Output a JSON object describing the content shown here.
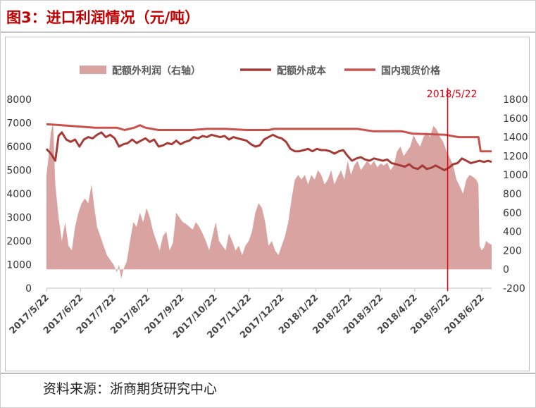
{
  "title": "图3：进口利润情况（元/吨）",
  "source": "资料来源：浙商期货研究中心",
  "colors": {
    "title": "#c00000",
    "profit_area": "#d9a3a1",
    "cost_line": "#a63b36",
    "price_line": "#c9514c",
    "marker_line": "#e60012"
  },
  "chart_data": {
    "type": "area",
    "legend_position": "top",
    "grid": false,
    "x_tick_labels": [
      "2017/5/22",
      "2017/6/22",
      "2017/7/22",
      "2017/8/22",
      "2017/9/22",
      "2017/10/22",
      "2017/11/22",
      "2017/12/22",
      "2018/1/22",
      "2018/2/22",
      "2018/3/22",
      "2018/4/22",
      "2018/5/22",
      "2018/6/22"
    ],
    "x_range": [
      "2017/5/22",
      "2018/7/1"
    ],
    "y_left": {
      "range": [
        0,
        8000
      ],
      "ticks": [
        0,
        1000,
        2000,
        3000,
        4000,
        5000,
        6000,
        7000,
        8000
      ]
    },
    "y_right": {
      "range": [
        -200,
        1800
      ],
      "ticks": [
        -200,
        0,
        200,
        400,
        600,
        800,
        1000,
        1200,
        1400,
        1600,
        1800
      ]
    },
    "annotation": {
      "label": "2018/5/22",
      "x": "2018/5/22"
    },
    "series": [
      {
        "name": "配额外利润（右轴）",
        "type": "area",
        "axis": "right",
        "points": [
          [
            "2017/5/22",
            1000
          ],
          [
            "2017/5/24",
            1200
          ],
          [
            "2017/5/26",
            1450
          ],
          [
            "2017/5/28",
            1550
          ],
          [
            "2017/5/30",
            900
          ],
          [
            "2017/6/2",
            550
          ],
          [
            "2017/6/5",
            300
          ],
          [
            "2017/6/8",
            500
          ],
          [
            "2017/6/11",
            250
          ],
          [
            "2017/6/14",
            200
          ],
          [
            "2017/6/17",
            450
          ],
          [
            "2017/6/20",
            600
          ],
          [
            "2017/6/23",
            700
          ],
          [
            "2017/6/26",
            750
          ],
          [
            "2017/6/29",
            700
          ],
          [
            "2017/7/2",
            900
          ],
          [
            "2017/7/4",
            700
          ],
          [
            "2017/7/7",
            450
          ],
          [
            "2017/7/10",
            350
          ],
          [
            "2017/7/13",
            250
          ],
          [
            "2017/7/16",
            150
          ],
          [
            "2017/7/19",
            100
          ],
          [
            "2017/7/22",
            50
          ],
          [
            "2017/7/25",
            -30
          ],
          [
            "2017/7/27",
            50
          ],
          [
            "2017/7/29",
            -100
          ],
          [
            "2017/7/31",
            0
          ],
          [
            "2017/8/3",
            80
          ],
          [
            "2017/8/6",
            300
          ],
          [
            "2017/8/9",
            500
          ],
          [
            "2017/8/12",
            450
          ],
          [
            "2017/8/15",
            600
          ],
          [
            "2017/8/18",
            500
          ],
          [
            "2017/8/21",
            650
          ],
          [
            "2017/8/24",
            550
          ],
          [
            "2017/8/27",
            400
          ],
          [
            "2017/8/30",
            300
          ],
          [
            "2017/9/2",
            200
          ],
          [
            "2017/9/5",
            350
          ],
          [
            "2017/9/8",
            400
          ],
          [
            "2017/9/11",
            200
          ],
          [
            "2017/9/14",
            280
          ],
          [
            "2017/9/17",
            600
          ],
          [
            "2017/9/20",
            550
          ],
          [
            "2017/9/23",
            500
          ],
          [
            "2017/9/26",
            480
          ],
          [
            "2017/9/29",
            450
          ],
          [
            "2017/10/2",
            420
          ],
          [
            "2017/10/5",
            500
          ],
          [
            "2017/10/8",
            450
          ],
          [
            "2017/10/11",
            380
          ],
          [
            "2017/10/14",
            300
          ],
          [
            "2017/10/17",
            200
          ],
          [
            "2017/10/20",
            350
          ],
          [
            "2017/10/23",
            500
          ],
          [
            "2017/10/26",
            300
          ],
          [
            "2017/10/29",
            250
          ],
          [
            "2017/11/1",
            200
          ],
          [
            "2017/11/4",
            380
          ],
          [
            "2017/11/7",
            300
          ],
          [
            "2017/11/10",
            200
          ],
          [
            "2017/11/13",
            250
          ],
          [
            "2017/11/16",
            150
          ],
          [
            "2017/11/19",
            250
          ],
          [
            "2017/11/22",
            300
          ],
          [
            "2017/11/25",
            400
          ],
          [
            "2017/11/28",
            600
          ],
          [
            "2017/12/1",
            700
          ],
          [
            "2017/12/4",
            650
          ],
          [
            "2017/12/7",
            500
          ],
          [
            "2017/12/10",
            250
          ],
          [
            "2017/12/13",
            300
          ],
          [
            "2017/12/16",
            200
          ],
          [
            "2017/12/19",
            150
          ],
          [
            "2017/12/22",
            250
          ],
          [
            "2017/12/25",
            350
          ],
          [
            "2017/12/28",
            500
          ],
          [
            "2017/12/31",
            750
          ],
          [
            "2018/1/3",
            950
          ],
          [
            "2018/1/6",
            1000
          ],
          [
            "2018/1/9",
            950
          ],
          [
            "2018/1/12",
            1000
          ],
          [
            "2018/1/15",
            900
          ],
          [
            "2018/1/18",
            1000
          ],
          [
            "2018/1/21",
            950
          ],
          [
            "2018/1/24",
            1050
          ],
          [
            "2018/1/27",
            1000
          ],
          [
            "2018/1/30",
            900
          ],
          [
            "2018/2/2",
            950
          ],
          [
            "2018/2/5",
            1050
          ],
          [
            "2018/2/8",
            900
          ],
          [
            "2018/2/11",
            980
          ],
          [
            "2018/2/14",
            1050
          ],
          [
            "2018/2/17",
            950
          ],
          [
            "2018/2/20",
            1150
          ],
          [
            "2018/2/23",
            1000
          ],
          [
            "2018/2/26",
            1100
          ],
          [
            "2018/3/1",
            1150
          ],
          [
            "2018/3/4",
            1050
          ],
          [
            "2018/3/7",
            1100
          ],
          [
            "2018/3/10",
            1150
          ],
          [
            "2018/3/13",
            1100
          ],
          [
            "2018/3/16",
            1150
          ],
          [
            "2018/3/19",
            1080
          ],
          [
            "2018/3/22",
            1120
          ],
          [
            "2018/3/25",
            1100
          ],
          [
            "2018/3/28",
            1130
          ],
          [
            "2018/3/31",
            1050
          ],
          [
            "2018/4/3",
            1100
          ],
          [
            "2018/4/6",
            1250
          ],
          [
            "2018/4/9",
            1300
          ],
          [
            "2018/4/12",
            1200
          ],
          [
            "2018/4/15",
            1250
          ],
          [
            "2018/4/18",
            1300
          ],
          [
            "2018/4/21",
            1420
          ],
          [
            "2018/4/24",
            1350
          ],
          [
            "2018/4/27",
            1300
          ],
          [
            "2018/4/30",
            1400
          ],
          [
            "2018/5/3",
            1450
          ],
          [
            "2018/5/6",
            1400
          ],
          [
            "2018/5/9",
            1520
          ],
          [
            "2018/5/12",
            1480
          ],
          [
            "2018/5/15",
            1400
          ],
          [
            "2018/5/18",
            1350
          ],
          [
            "2018/5/21",
            1250
          ],
          [
            "2018/5/24",
            1180
          ],
          [
            "2018/5/27",
            1100
          ],
          [
            "2018/5/30",
            950
          ],
          [
            "2018/6/2",
            880
          ],
          [
            "2018/6/5",
            800
          ],
          [
            "2018/6/8",
            950
          ],
          [
            "2018/6/11",
            1000
          ],
          [
            "2018/6/14",
            980
          ],
          [
            "2018/6/17",
            950
          ],
          [
            "2018/6/19",
            900
          ],
          [
            "2018/6/20",
            250
          ],
          [
            "2018/6/22",
            200
          ],
          [
            "2018/6/24",
            230
          ],
          [
            "2018/6/26",
            300
          ],
          [
            "2018/6/28",
            280
          ],
          [
            "2018/7/1",
            260
          ]
        ]
      },
      {
        "name": "配额外成本",
        "type": "line",
        "axis": "left",
        "points": [
          [
            "2017/5/22",
            5900
          ],
          [
            "2017/5/26",
            5700
          ],
          [
            "2017/5/30",
            5400
          ],
          [
            "2017/6/2",
            6450
          ],
          [
            "2017/6/5",
            6600
          ],
          [
            "2017/6/9",
            6300
          ],
          [
            "2017/6/13",
            6200
          ],
          [
            "2017/6/17",
            6300
          ],
          [
            "2017/6/21",
            6000
          ],
          [
            "2017/6/25",
            6300
          ],
          [
            "2017/6/29",
            6400
          ],
          [
            "2017/7/3",
            6350
          ],
          [
            "2017/7/7",
            6500
          ],
          [
            "2017/7/11",
            6600
          ],
          [
            "2017/7/15",
            6400
          ],
          [
            "2017/7/19",
            6500
          ],
          [
            "2017/7/23",
            6350
          ],
          [
            "2017/7/27",
            6000
          ],
          [
            "2017/7/31",
            6100
          ],
          [
            "2017/8/4",
            6150
          ],
          [
            "2017/8/8",
            6300
          ],
          [
            "2017/8/12",
            6150
          ],
          [
            "2017/8/16",
            6250
          ],
          [
            "2017/8/20",
            6350
          ],
          [
            "2017/8/24",
            6200
          ],
          [
            "2017/8/28",
            6300
          ],
          [
            "2017/9/1",
            6000
          ],
          [
            "2017/9/5",
            6050
          ],
          [
            "2017/9/9",
            6150
          ],
          [
            "2017/9/13",
            6100
          ],
          [
            "2017/9/17",
            6250
          ],
          [
            "2017/9/21",
            6100
          ],
          [
            "2017/9/25",
            6200
          ],
          [
            "2017/9/29",
            6250
          ],
          [
            "2017/10/3",
            6400
          ],
          [
            "2017/10/7",
            6350
          ],
          [
            "2017/10/11",
            6450
          ],
          [
            "2017/10/15",
            6400
          ],
          [
            "2017/10/19",
            6500
          ],
          [
            "2017/10/23",
            6450
          ],
          [
            "2017/10/27",
            6400
          ],
          [
            "2017/10/31",
            6450
          ],
          [
            "2017/11/4",
            6300
          ],
          [
            "2017/11/8",
            6400
          ],
          [
            "2017/11/12",
            6350
          ],
          [
            "2017/11/16",
            6300
          ],
          [
            "2017/11/20",
            6250
          ],
          [
            "2017/11/24",
            6100
          ],
          [
            "2017/11/28",
            6000
          ],
          [
            "2017/12/2",
            6050
          ],
          [
            "2017/12/6",
            6300
          ],
          [
            "2017/12/10",
            6400
          ],
          [
            "2017/12/14",
            6500
          ],
          [
            "2017/12/18",
            6400
          ],
          [
            "2017/12/22",
            6350
          ],
          [
            "2017/12/26",
            6200
          ],
          [
            "2017/12/30",
            5900
          ],
          [
            "2018/1/3",
            5800
          ],
          [
            "2018/1/7",
            5800
          ],
          [
            "2018/1/11",
            5850
          ],
          [
            "2018/1/15",
            5900
          ],
          [
            "2018/1/19",
            5800
          ],
          [
            "2018/1/23",
            5900
          ],
          [
            "2018/1/27",
            5850
          ],
          [
            "2018/1/31",
            5850
          ],
          [
            "2018/2/4",
            5800
          ],
          [
            "2018/2/8",
            5700
          ],
          [
            "2018/2/12",
            5800
          ],
          [
            "2018/2/16",
            5850
          ],
          [
            "2018/2/20",
            5600
          ],
          [
            "2018/2/24",
            5400
          ],
          [
            "2018/2/28",
            5500
          ],
          [
            "2018/3/4",
            5550
          ],
          [
            "2018/3/8",
            5450
          ],
          [
            "2018/3/12",
            5400
          ],
          [
            "2018/3/16",
            5500
          ],
          [
            "2018/3/20",
            5450
          ],
          [
            "2018/3/24",
            5400
          ],
          [
            "2018/3/28",
            5450
          ],
          [
            "2018/4/1",
            5300
          ],
          [
            "2018/4/5",
            5250
          ],
          [
            "2018/4/9",
            5200
          ],
          [
            "2018/4/13",
            5150
          ],
          [
            "2018/4/17",
            5250
          ],
          [
            "2018/4/21",
            5100
          ],
          [
            "2018/4/25",
            5050
          ],
          [
            "2018/4/29",
            5200
          ],
          [
            "2018/5/3",
            5050
          ],
          [
            "2018/5/7",
            5100
          ],
          [
            "2018/5/11",
            5200
          ],
          [
            "2018/5/15",
            5100
          ],
          [
            "2018/5/19",
            5000
          ],
          [
            "2018/5/23",
            5100
          ],
          [
            "2018/5/27",
            5250
          ],
          [
            "2018/5/31",
            5300
          ],
          [
            "2018/6/4",
            5500
          ],
          [
            "2018/6/8",
            5400
          ],
          [
            "2018/6/12",
            5300
          ],
          [
            "2018/6/16",
            5350
          ],
          [
            "2018/6/20",
            5400
          ],
          [
            "2018/6/24",
            5350
          ],
          [
            "2018/6/28",
            5400
          ],
          [
            "2018/7/1",
            5350
          ]
        ]
      },
      {
        "name": "国内现货价格",
        "type": "line",
        "axis": "left",
        "points": [
          [
            "2017/5/22",
            6950
          ],
          [
            "2017/6/5",
            6900
          ],
          [
            "2017/6/20",
            6850
          ],
          [
            "2017/7/5",
            6800
          ],
          [
            "2017/7/25",
            6800
          ],
          [
            "2017/8/1",
            6700
          ],
          [
            "2017/8/10",
            6800
          ],
          [
            "2017/8/15",
            6900
          ],
          [
            "2017/8/20",
            6800
          ],
          [
            "2017/9/1",
            6700
          ],
          [
            "2017/10/1",
            6700
          ],
          [
            "2017/10/15",
            6750
          ],
          [
            "2017/11/1",
            6750
          ],
          [
            "2017/11/20",
            6700
          ],
          [
            "2017/12/10",
            6700
          ],
          [
            "2017/12/15",
            6750
          ],
          [
            "2018/1/15",
            6750
          ],
          [
            "2018/3/1",
            6750
          ],
          [
            "2018/3/15",
            6650
          ],
          [
            "2018/4/10",
            6650
          ],
          [
            "2018/4/20",
            6550
          ],
          [
            "2018/5/20",
            6500
          ],
          [
            "2018/6/1",
            6400
          ],
          [
            "2018/6/19",
            6400
          ],
          [
            "2018/6/21",
            5800
          ],
          [
            "2018/7/1",
            5800
          ]
        ]
      }
    ]
  }
}
